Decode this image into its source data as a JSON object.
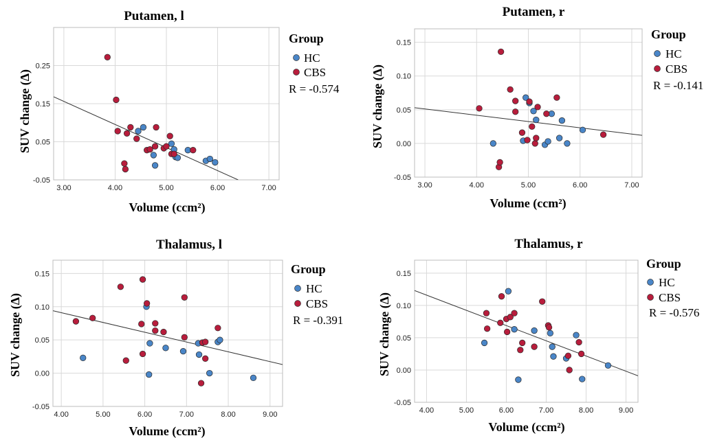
{
  "legend": {
    "title": "Group",
    "hc": "HC",
    "cbs": "CBS"
  },
  "colors": {
    "HC": "#4a86c8",
    "CBS": "#b81d3c",
    "grid": "#d9d9d9",
    "frame": "#bdbdbd",
    "fit": "#333333"
  },
  "chart_data": [
    {
      "type": "scatter",
      "title": "Putamen, l",
      "xlabel": "Volume (ccm²)",
      "ylabel": "SUV change (Δ)",
      "xlim": [
        2.8,
        7.2
      ],
      "ylim": [
        -0.05,
        0.35
      ],
      "xticks": [
        3,
        4,
        5,
        6,
        7
      ],
      "xtick_labels": [
        "3.00",
        "4.00",
        "5.00",
        "6.00",
        "7.00"
      ],
      "yticks": [
        -0.05,
        0.05,
        0.15,
        0.25
      ],
      "ytick_labels": [
        "-0.05",
        "0.05",
        "0.15",
        "0.25"
      ],
      "r_text": "R = -0.574",
      "fit": {
        "x": [
          2.8,
          6.4
        ],
        "y": [
          0.168,
          -0.05
        ]
      },
      "series": [
        {
          "name": "HC",
          "points": [
            [
              4.45,
              0.078
            ],
            [
              4.55,
              0.088
            ],
            [
              4.75,
              0.015
            ],
            [
              4.78,
              -0.012
            ],
            [
              5.1,
              0.045
            ],
            [
              5.15,
              0.03
            ],
            [
              5.18,
              0.01
            ],
            [
              5.22,
              0.008
            ],
            [
              5.42,
              0.028
            ],
            [
              5.77,
              0.0
            ],
            [
              5.85,
              0.005
            ],
            [
              5.95,
              -0.004
            ]
          ]
        },
        {
          "name": "CBS",
          "points": [
            [
              3.85,
              0.272
            ],
            [
              4.02,
              0.16
            ],
            [
              4.05,
              0.078
            ],
            [
              4.18,
              -0.007
            ],
            [
              4.2,
              -0.022
            ],
            [
              4.23,
              0.072
            ],
            [
              4.3,
              0.088
            ],
            [
              4.42,
              0.058
            ],
            [
              4.62,
              0.028
            ],
            [
              4.68,
              0.03
            ],
            [
              4.78,
              0.038
            ],
            [
              4.8,
              0.088
            ],
            [
              4.95,
              0.033
            ],
            [
              5.0,
              0.038
            ],
            [
              5.07,
              0.065
            ],
            [
              5.1,
              0.018
            ],
            [
              5.15,
              0.018
            ],
            [
              5.52,
              0.028
            ]
          ]
        }
      ]
    },
    {
      "type": "scatter",
      "title": "Putamen, r",
      "xlabel": "Volume (ccm²)",
      "ylabel": "SUV change (Δ)",
      "xlim": [
        2.8,
        7.2
      ],
      "ylim": [
        -0.05,
        0.17
      ],
      "xticks": [
        3,
        4,
        5,
        6,
        7
      ],
      "xtick_labels": [
        "3.00",
        "4.00",
        "5.00",
        "6.00",
        "7.00"
      ],
      "yticks": [
        -0.05,
        0.0,
        0.05,
        0.1,
        0.15
      ],
      "ytick_labels": [
        "-0.05",
        "0.00",
        "0.05",
        "0.10",
        "0.15"
      ],
      "r_text": "R = -0.141",
      "fit": {
        "x": [
          2.8,
          7.2
        ],
        "y": [
          0.053,
          0.012
        ]
      },
      "series": [
        {
          "name": "HC",
          "points": [
            [
              4.32,
              0.0
            ],
            [
              4.9,
              0.004
            ],
            [
              4.95,
              0.068
            ],
            [
              5.02,
              0.06
            ],
            [
              5.1,
              0.048
            ],
            [
              5.15,
              0.035
            ],
            [
              5.32,
              -0.002
            ],
            [
              5.38,
              0.003
            ],
            [
              5.45,
              0.044
            ],
            [
              5.6,
              0.008
            ],
            [
              5.65,
              0.034
            ],
            [
              5.75,
              0.0
            ],
            [
              6.05,
              0.02
            ]
          ]
        },
        {
          "name": "CBS",
          "points": [
            [
              4.05,
              0.052
            ],
            [
              4.43,
              -0.035
            ],
            [
              4.45,
              -0.028
            ],
            [
              4.47,
              0.136
            ],
            [
              4.65,
              0.08
            ],
            [
              4.75,
              0.063
            ],
            [
              4.75,
              0.047
            ],
            [
              4.88,
              0.016
            ],
            [
              4.98,
              0.005
            ],
            [
              5.02,
              0.062
            ],
            [
              5.07,
              0.025
            ],
            [
              5.13,
              0.0
            ],
            [
              5.15,
              0.008
            ],
            [
              5.18,
              0.054
            ],
            [
              5.35,
              0.044
            ],
            [
              5.55,
              0.068
            ],
            [
              6.45,
              0.013
            ]
          ]
        }
      ]
    },
    {
      "type": "scatter",
      "title": "Thalamus, l",
      "xlabel": "Volume (ccm²)",
      "ylabel": "SUV change (Δ)",
      "xlim": [
        3.8,
        9.3
      ],
      "ylim": [
        -0.05,
        0.17
      ],
      "xticks": [
        4,
        5,
        6,
        7,
        8,
        9
      ],
      "xtick_labels": [
        "4.00",
        "5.00",
        "6.00",
        "7.00",
        "8.00",
        "9.00"
      ],
      "yticks": [
        -0.05,
        0.0,
        0.05,
        0.1,
        0.15
      ],
      "ytick_labels": [
        "-0.05",
        "0.00",
        "0.05",
        "0.10",
        "0.15"
      ],
      "r_text": "R = -0.391",
      "fit": {
        "x": [
          3.8,
          9.3
        ],
        "y": [
          0.094,
          0.013
        ]
      },
      "series": [
        {
          "name": "HC",
          "points": [
            [
              4.52,
              0.023
            ],
            [
              6.04,
              0.1
            ],
            [
              6.1,
              -0.002
            ],
            [
              6.12,
              0.045
            ],
            [
              6.5,
              0.038
            ],
            [
              6.92,
              0.033
            ],
            [
              7.28,
              0.045
            ],
            [
              7.3,
              0.028
            ],
            [
              7.55,
              0.0
            ],
            [
              7.75,
              0.047
            ],
            [
              7.8,
              0.05
            ],
            [
              8.6,
              -0.007
            ]
          ]
        },
        {
          "name": "CBS",
          "points": [
            [
              4.35,
              0.078
            ],
            [
              4.75,
              0.083
            ],
            [
              5.42,
              0.13
            ],
            [
              5.55,
              0.019
            ],
            [
              5.92,
              0.074
            ],
            [
              5.95,
              0.029
            ],
            [
              5.95,
              0.141
            ],
            [
              6.05,
              0.105
            ],
            [
              6.25,
              0.064
            ],
            [
              6.25,
              0.075
            ],
            [
              6.45,
              0.062
            ],
            [
              6.95,
              0.054
            ],
            [
              6.95,
              0.114
            ],
            [
              7.35,
              -0.015
            ],
            [
              7.38,
              0.046
            ],
            [
              7.45,
              0.047
            ],
            [
              7.45,
              0.022
            ],
            [
              7.75,
              0.068
            ]
          ]
        }
      ]
    },
    {
      "type": "scatter",
      "title": "Thalamus, r",
      "xlabel": "Volume (ccm²)",
      "ylabel": "SUV change (Δ)",
      "xlim": [
        3.7,
        9.3
      ],
      "ylim": [
        -0.05,
        0.17
      ],
      "xticks": [
        4,
        5,
        6,
        7,
        8,
        9
      ],
      "xtick_labels": [
        "4.00",
        "5.00",
        "6.00",
        "7.00",
        "8.00",
        "9.00"
      ],
      "yticks": [
        -0.05,
        0.0,
        0.05,
        0.1,
        0.15
      ],
      "ytick_labels": [
        "-0.05",
        "0.00",
        "0.05",
        "0.10",
        "0.15"
      ],
      "r_text": "R = -0.576",
      "fit": {
        "x": [
          3.7,
          9.3
        ],
        "y": [
          0.123,
          -0.009
        ]
      },
      "series": [
        {
          "name": "HC",
          "points": [
            [
              5.45,
              0.042
            ],
            [
              6.05,
              0.122
            ],
            [
              6.2,
              0.063
            ],
            [
              6.3,
              -0.015
            ],
            [
              6.7,
              0.061
            ],
            [
              7.1,
              0.057
            ],
            [
              7.15,
              0.036
            ],
            [
              7.18,
              0.021
            ],
            [
              7.5,
              0.018
            ],
            [
              7.75,
              0.054
            ],
            [
              7.9,
              -0.014
            ],
            [
              8.55,
              0.007
            ]
          ]
        },
        {
          "name": "CBS",
          "points": [
            [
              5.5,
              0.088
            ],
            [
              5.52,
              0.064
            ],
            [
              5.85,
              0.073
            ],
            [
              5.88,
              0.114
            ],
            [
              6.0,
              0.079
            ],
            [
              6.02,
              0.059
            ],
            [
              6.1,
              0.082
            ],
            [
              6.2,
              0.088
            ],
            [
              6.35,
              0.031
            ],
            [
              6.4,
              0.042
            ],
            [
              6.7,
              0.036
            ],
            [
              6.9,
              0.106
            ],
            [
              7.05,
              0.069
            ],
            [
              7.07,
              0.066
            ],
            [
              7.55,
              0.022
            ],
            [
              7.58,
              0.0
            ],
            [
              7.82,
              0.043
            ],
            [
              7.88,
              0.025
            ]
          ]
        }
      ]
    }
  ]
}
